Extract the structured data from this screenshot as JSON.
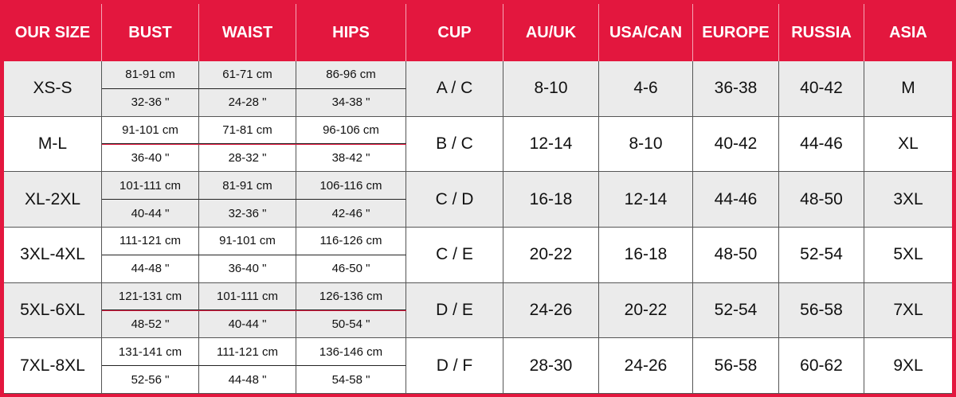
{
  "table": {
    "header": [
      "OUR SIZE",
      "BUST",
      "WAIST",
      "HIPS",
      "CUP",
      "AU/UK",
      "USA/CAN",
      "EUROPE",
      "RUSSIA",
      "ASIA"
    ],
    "rows": [
      [
        "XS-S",
        "81-91 cm",
        "32-36 \"",
        "61-71 cm",
        "24-28 \"",
        "86-96 cm",
        "34-38 \"",
        "A / C",
        "8-10",
        "4-6",
        "36-38",
        "40-42",
        "M"
      ],
      [
        "M-L",
        "91-101 cm",
        "36-40 \"",
        "71-81 cm",
        "28-32 \"",
        "96-106 cm",
        "38-42 \"",
        "B / C",
        "12-14",
        "8-10",
        "40-42",
        "44-46",
        "XL"
      ],
      [
        "XL-2XL",
        "101-111 cm",
        "40-44 \"",
        "81-91 cm",
        "32-36 \"",
        "106-116 cm",
        "42-46 \"",
        "C / D",
        "16-18",
        "12-14",
        "44-46",
        "48-50",
        "3XL"
      ],
      [
        "3XL-4XL",
        "111-121 cm",
        "44-48 \"",
        "91-101 cm",
        "36-40 \"",
        "116-126 cm",
        "46-50 \"",
        "C / E",
        "20-22",
        "16-18",
        "48-50",
        "52-54",
        "5XL"
      ],
      [
        "5XL-6XL",
        "121-131 cm",
        "48-52 \"",
        "101-111 cm",
        "40-44 \"",
        "126-136 cm",
        "50-54 \"",
        "D / E",
        "24-26",
        "20-22",
        "52-54",
        "56-58",
        "7XL"
      ],
      [
        "7XL-8XL",
        "131-141 cm",
        "52-56 \"",
        "111-121 cm",
        "44-48 \"",
        "136-146 cm",
        "54-58 \"",
        "D / F",
        "28-30",
        "24-26",
        "56-58",
        "60-62",
        "9XL"
      ]
    ]
  }
}
